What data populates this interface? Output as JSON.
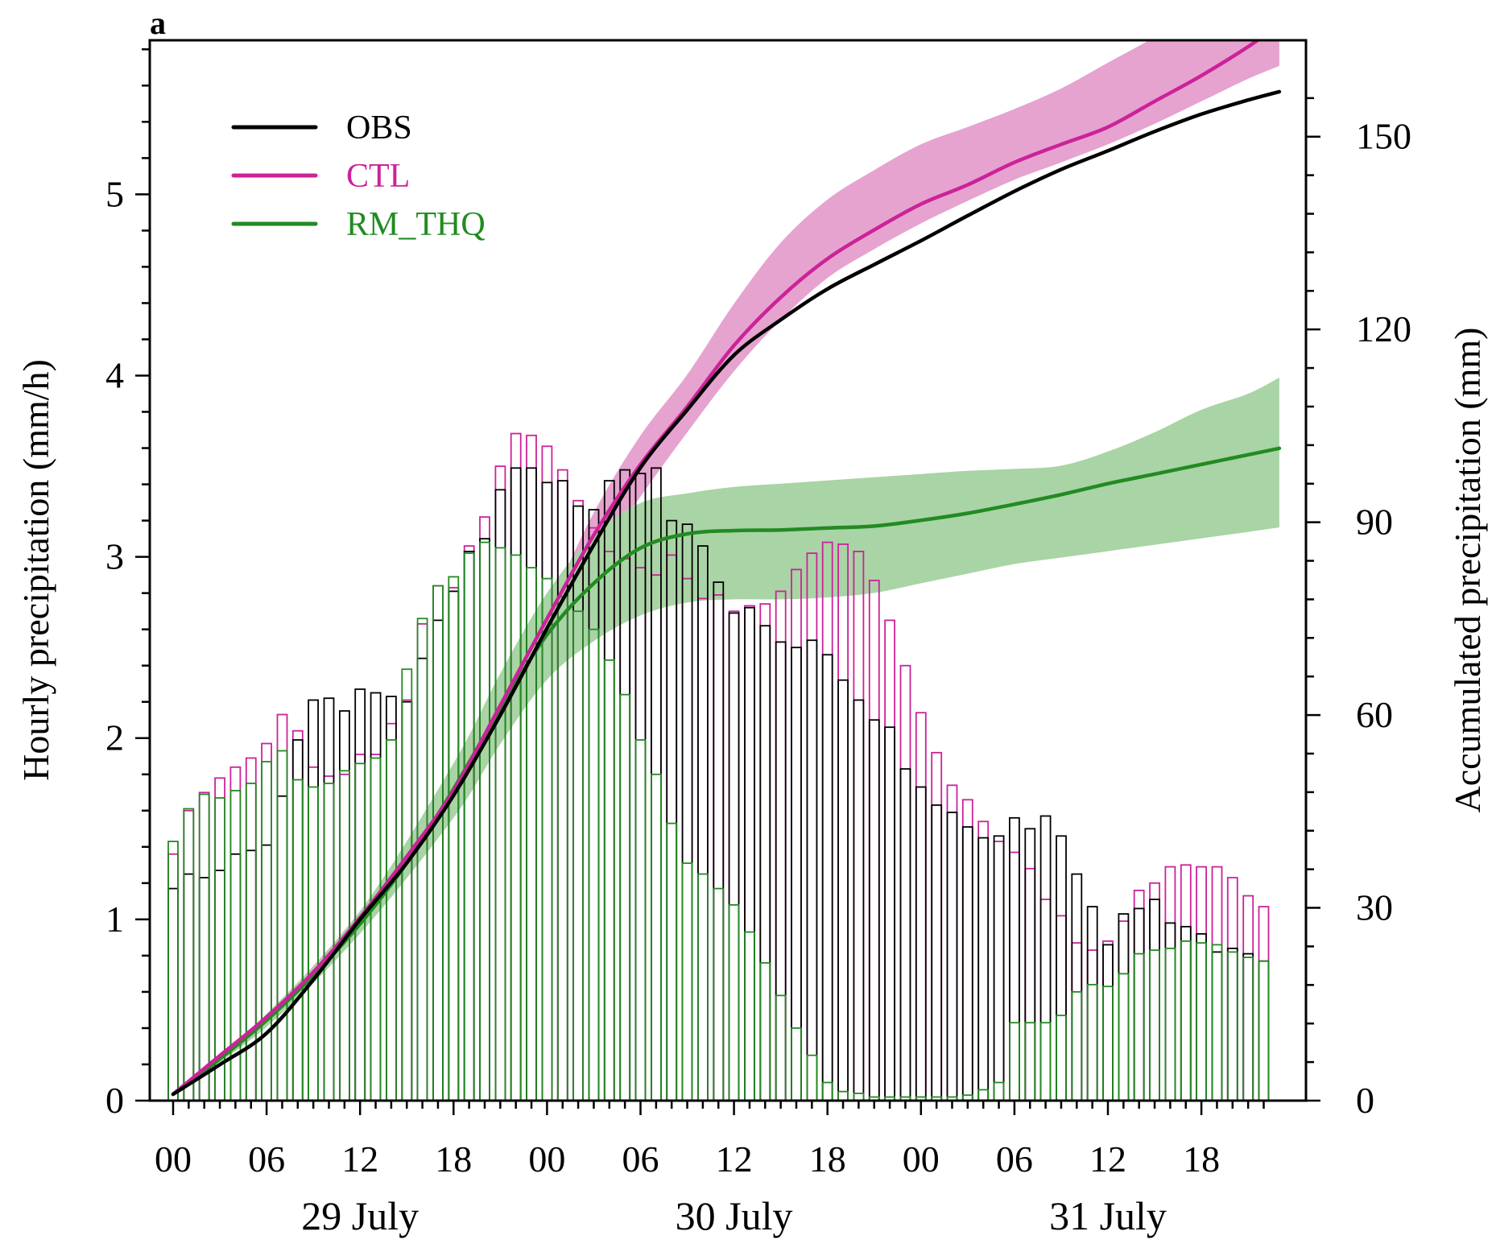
{
  "panel_label": "a",
  "chart_data": {
    "type": "bar",
    "secondary_type": "line",
    "time_step_hours": 1,
    "x_tick_labels": [
      "00",
      "06",
      "12",
      "18",
      "00",
      "06",
      "12",
      "18",
      "00",
      "06",
      "12",
      "18"
    ],
    "day_labels": [
      "29 July",
      "30 July",
      "31 July"
    ],
    "ylabel_left": "Hourly precipitation (mm/h)",
    "ylabel_right": "Accumulated precipitation (mm)",
    "ylim_left": [
      0,
      5.85
    ],
    "ylim_right": [
      0,
      165
    ],
    "yticks_left": [
      0,
      1,
      2,
      3,
      4,
      5
    ],
    "yticks_right": [
      0,
      30,
      60,
      90,
      120,
      150
    ],
    "legend_placement": "top-left",
    "colors": {
      "OBS": "#000000",
      "CTL": "#cc2299",
      "RM_THQ": "#228B22",
      "CTL_band": "#e6a3cf",
      "RM_THQ_band": "#a9d4a5"
    },
    "series": [
      {
        "name": "OBS",
        "role": "hourly-bars",
        "values": [
          1.17,
          1.25,
          1.23,
          1.27,
          1.36,
          1.38,
          1.41,
          1.68,
          1.99,
          2.21,
          2.22,
          2.15,
          2.27,
          2.25,
          2.23,
          2.2,
          2.44,
          2.65,
          2.81,
          3.03,
          3.1,
          3.37,
          3.49,
          3.49,
          3.41,
          3.42,
          3.28,
          3.26,
          3.42,
          3.48,
          3.46,
          3.49,
          3.2,
          3.18,
          3.06,
          2.86,
          2.69,
          2.72,
          2.62,
          2.53,
          2.5,
          2.54,
          2.46,
          2.32,
          2.21,
          2.1,
          2.06,
          1.83,
          1.73,
          1.63,
          1.59,
          1.51,
          1.45,
          1.46,
          1.56,
          1.5,
          1.57,
          1.46,
          1.25,
          1.07,
          0.86,
          1.03,
          1.06,
          1.11,
          0.98,
          0.96,
          0.92,
          0.82,
          0.84,
          0.81,
          0.77
        ]
      },
      {
        "name": "CTL",
        "role": "hourly-bars",
        "values": [
          1.36,
          1.6,
          1.7,
          1.78,
          1.84,
          1.89,
          1.97,
          2.13,
          2.04,
          1.84,
          1.79,
          1.8,
          1.91,
          1.91,
          2.08,
          2.21,
          2.63,
          2.84,
          2.83,
          3.06,
          3.22,
          3.5,
          3.68,
          3.67,
          3.61,
          3.48,
          3.31,
          3.16,
          3.03,
          2.99,
          2.94,
          2.9,
          3.01,
          2.88,
          2.77,
          2.79,
          2.7,
          2.73,
          2.74,
          2.81,
          2.93,
          3.02,
          3.08,
          3.07,
          3.03,
          2.87,
          2.65,
          2.4,
          2.14,
          1.92,
          1.74,
          1.66,
          1.54,
          1.43,
          1.37,
          1.28,
          1.11,
          1.02,
          0.87,
          0.83,
          0.88,
          0.99,
          1.16,
          1.2,
          1.29,
          1.3,
          1.29,
          1.29,
          1.23,
          1.13,
          1.07
        ]
      },
      {
        "name": "RM_THQ",
        "role": "hourly-bars",
        "values": [
          1.43,
          1.61,
          1.69,
          1.67,
          1.71,
          1.75,
          1.87,
          1.93,
          1.77,
          1.73,
          1.75,
          1.82,
          1.86,
          1.89,
          1.99,
          2.38,
          2.66,
          2.84,
          2.89,
          3.02,
          3.08,
          3.05,
          3.01,
          2.94,
          2.88,
          2.78,
          2.7,
          2.6,
          2.43,
          2.24,
          1.99,
          1.8,
          1.53,
          1.31,
          1.25,
          1.17,
          1.08,
          0.93,
          0.76,
          0.58,
          0.4,
          0.25,
          0.1,
          0.05,
          0.04,
          0.02,
          0.02,
          0.02,
          0.02,
          0.02,
          0.02,
          0.03,
          0.06,
          0.1,
          0.43,
          0.43,
          0.43,
          0.47,
          0.6,
          0.64,
          0.63,
          0.7,
          0.81,
          0.83,
          0.84,
          0.88,
          0.87,
          0.86,
          0.82,
          0.79,
          0.77
        ]
      },
      {
        "name": "OBS",
        "role": "accumulated-line",
        "x": [
          0,
          3,
          6,
          9,
          12,
          15,
          18,
          21,
          24,
          27,
          30,
          33,
          36,
          39,
          42,
          45,
          48,
          51,
          54,
          57,
          60,
          63,
          66,
          69,
          71
        ],
        "values": [
          1,
          5.6,
          10.5,
          18.8,
          28.2,
          37,
          47.5,
          60,
          73.5,
          86.5,
          98.5,
          107.5,
          116,
          121.5,
          126.3,
          130.1,
          133.8,
          137.7,
          141.5,
          144.9,
          147.8,
          150.8,
          153.5,
          155.7,
          157
        ]
      },
      {
        "name": "CTL",
        "role": "accumulated-line",
        "x": [
          0,
          3,
          6,
          9,
          12,
          15,
          18,
          21,
          24,
          27,
          30,
          33,
          36,
          39,
          42,
          45,
          48,
          51,
          54,
          57,
          60,
          63,
          66,
          69,
          71
        ],
        "values": [
          1,
          7,
          13,
          20,
          28.5,
          38,
          48.2,
          61.5,
          75,
          88,
          99,
          108,
          117.5,
          125,
          131,
          135.5,
          139.5,
          142.5,
          146,
          148.8,
          151.5,
          155.5,
          159.5,
          164,
          167.5
        ]
      },
      {
        "name": "CTL",
        "role": "spread-band",
        "x": [
          0,
          6,
          12,
          18,
          21,
          24,
          27,
          30,
          33,
          36,
          39,
          42,
          45,
          48,
          51,
          54,
          57,
          60,
          63,
          66,
          69,
          71
        ],
        "lower": [
          1,
          12.5,
          27.5,
          46,
          58,
          72,
          83.5,
          94,
          104,
          113.5,
          121.5,
          128,
          132.5,
          136.5,
          140,
          143.3,
          146,
          148.8,
          152,
          155.5,
          159,
          161
        ],
        "upper": [
          1,
          13.5,
          29.5,
          50.5,
          63.5,
          76.5,
          91.5,
          103.5,
          113,
          124,
          133.5,
          140.2,
          144.8,
          148.8,
          151.5,
          154.3,
          157.5,
          161.5,
          165.5,
          170,
          175,
          178.5
        ]
      },
      {
        "name": "RM_THQ",
        "role": "accumulated-line",
        "x": [
          0,
          3,
          6,
          9,
          12,
          15,
          18,
          21,
          24,
          27,
          30,
          33,
          36,
          39,
          42,
          45,
          48,
          51,
          54,
          57,
          60,
          63,
          66,
          69,
          71
        ],
        "values": [
          1,
          6.5,
          12.5,
          19.5,
          27.5,
          37,
          48.5,
          61,
          72.5,
          80.5,
          86,
          88.2,
          88.7,
          88.8,
          89.1,
          89.4,
          90.3,
          91.4,
          92.8,
          94.3,
          96,
          97.5,
          99,
          100.5,
          101.5
        ]
      },
      {
        "name": "RM_THQ",
        "role": "spread-band",
        "x": [
          0,
          6,
          12,
          18,
          21,
          24,
          27,
          30,
          33,
          36,
          39,
          42,
          45,
          48,
          51,
          54,
          57,
          60,
          63,
          66,
          69,
          71
        ],
        "lower": [
          1,
          11.5,
          26,
          44,
          55.5,
          65.5,
          71.5,
          75.5,
          77.5,
          78,
          78,
          78.3,
          79,
          80.5,
          82,
          83.5,
          84.5,
          85.5,
          86.5,
          87.5,
          88.5,
          89.2
        ],
        "upper": [
          1,
          13.5,
          29.5,
          52.5,
          66.5,
          79,
          88,
          93,
          94.5,
          95.5,
          96,
          96.5,
          97,
          97.5,
          98,
          98.3,
          98.8,
          101,
          104,
          107.5,
          110,
          112.5
        ]
      }
    ]
  }
}
